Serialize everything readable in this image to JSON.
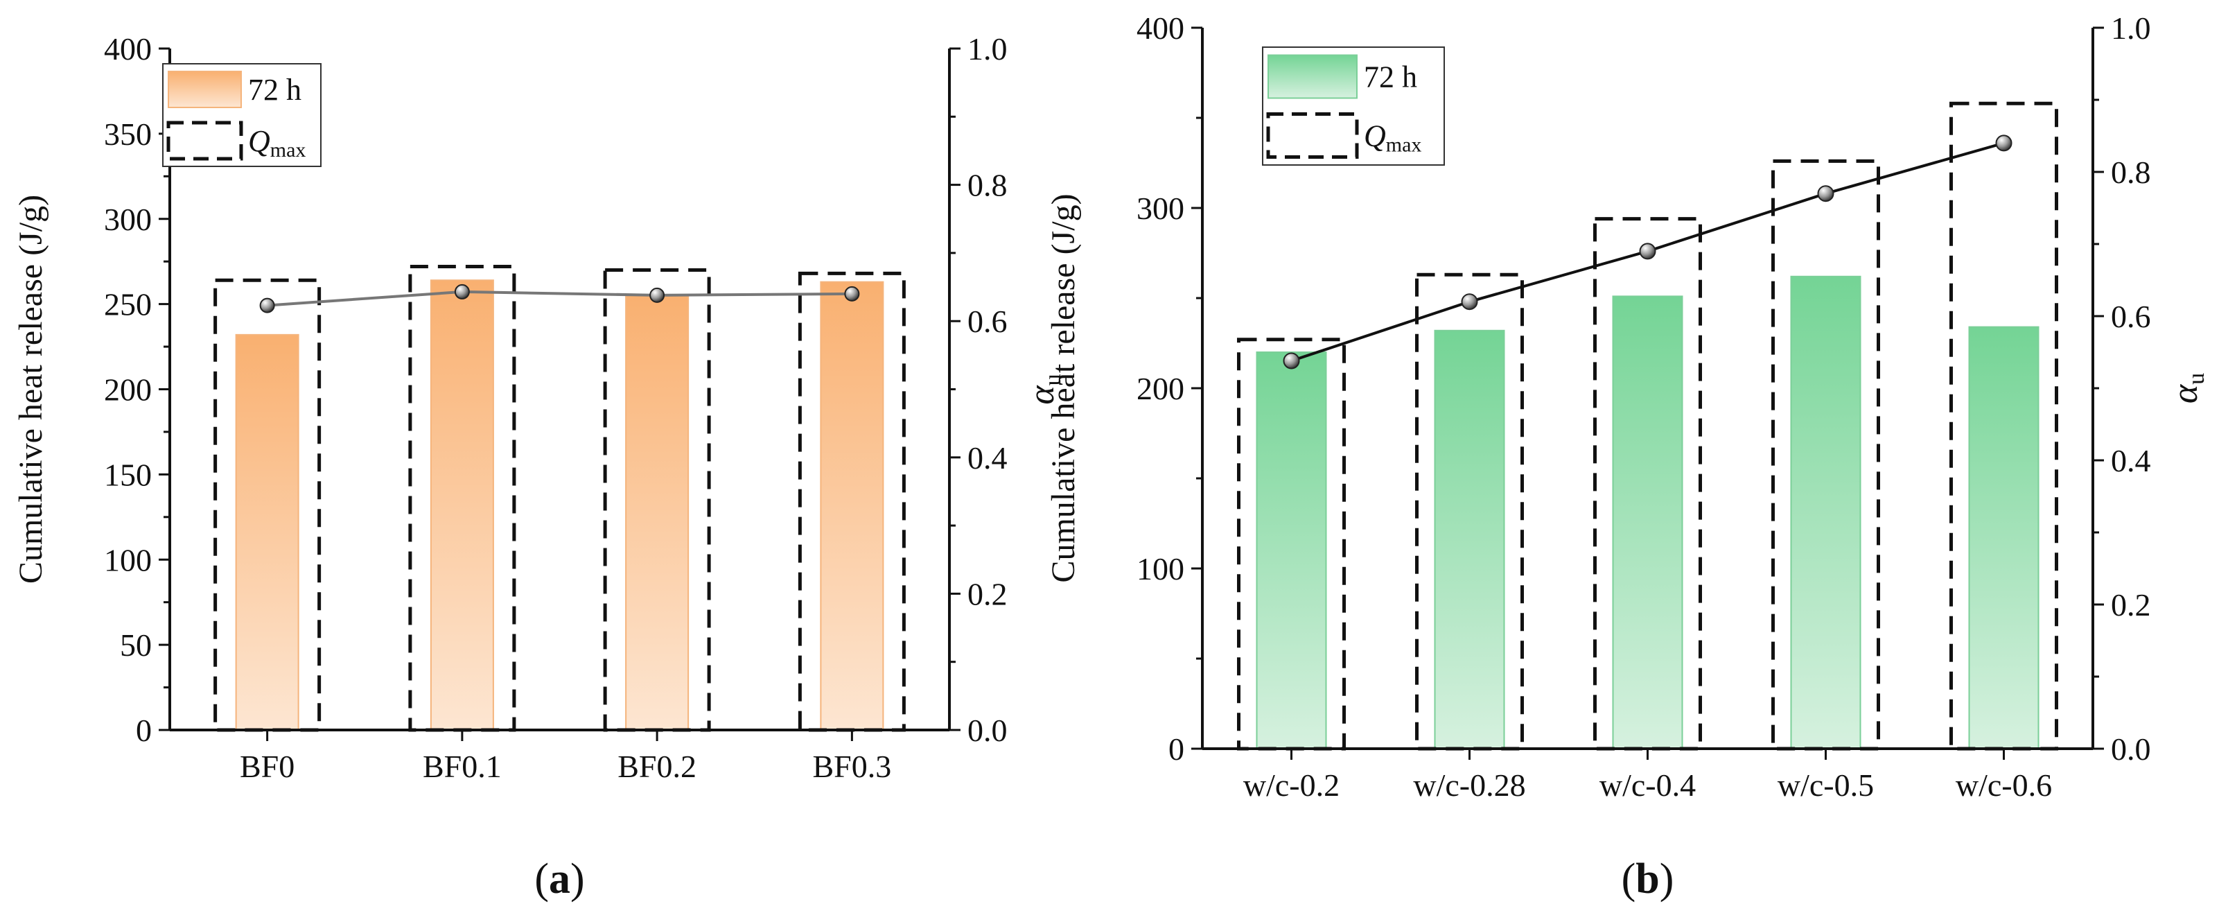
{
  "chart_data": [
    {
      "type": "bar",
      "panel_label": "a",
      "categories": [
        "BF0",
        "BF0.1",
        "BF0.2",
        "BF0.3"
      ],
      "series": [
        {
          "name": "72 h",
          "values": [
            232,
            264,
            255,
            263
          ]
        },
        {
          "name": "Q_max",
          "values": [
            264,
            272,
            270,
            268
          ]
        }
      ],
      "alpha_u": [
        0.623,
        0.643,
        0.638,
        0.64
      ],
      "ylabel": "Cumulative heat release (J/g)",
      "ylim": [
        0,
        400
      ],
      "yticks": [
        0,
        50,
        100,
        150,
        200,
        250,
        300,
        350,
        400
      ],
      "y2label_symbol": "α",
      "y2label_sub": "u",
      "y2lim": [
        0,
        1.0
      ],
      "y2ticks": [
        0.0,
        0.2,
        0.4,
        0.6,
        0.8,
        1.0
      ],
      "legend": {
        "bar_label": "72 h",
        "qmax_main": "Q",
        "qmax_sub": "max",
        "position": "top-left"
      },
      "colors": {
        "bar_top": "#f9b070",
        "bar_bottom": "#fde6d2",
        "bar_edge": "#f5b47c",
        "line": "#777777",
        "marker": "#8a8a8a"
      }
    },
    {
      "type": "bar",
      "panel_label": "b",
      "categories": [
        "w/c-0.2",
        "w/c-0.28",
        "w/c-0.4",
        "w/c-0.5",
        "w/c-0.6"
      ],
      "series": [
        {
          "name": "72 h",
          "values": [
            220,
            232,
            251,
            262,
            234
          ]
        },
        {
          "name": "Q_max",
          "values": [
            227,
            263,
            294,
            326,
            358
          ]
        }
      ],
      "alpha_u": [
        0.538,
        0.62,
        0.69,
        0.77,
        0.84
      ],
      "ylabel": "Cumulative heat release (J/g)",
      "ylim": [
        0,
        400
      ],
      "yticks": [
        0,
        100,
        200,
        300,
        400
      ],
      "y2label_symbol": "α",
      "y2label_sub": "u",
      "y2lim": [
        0,
        1.0
      ],
      "y2ticks": [
        0.0,
        0.2,
        0.4,
        0.6,
        0.8,
        1.0
      ],
      "legend": {
        "bar_label": "72 h",
        "qmax_main": "Q",
        "qmax_sub": "max",
        "position": "top-left"
      },
      "colors": {
        "bar_top": "#74d495",
        "bar_bottom": "#d6f1df",
        "bar_edge": "#7bcf98",
        "line": "#111111",
        "marker": "#333333"
      }
    }
  ]
}
